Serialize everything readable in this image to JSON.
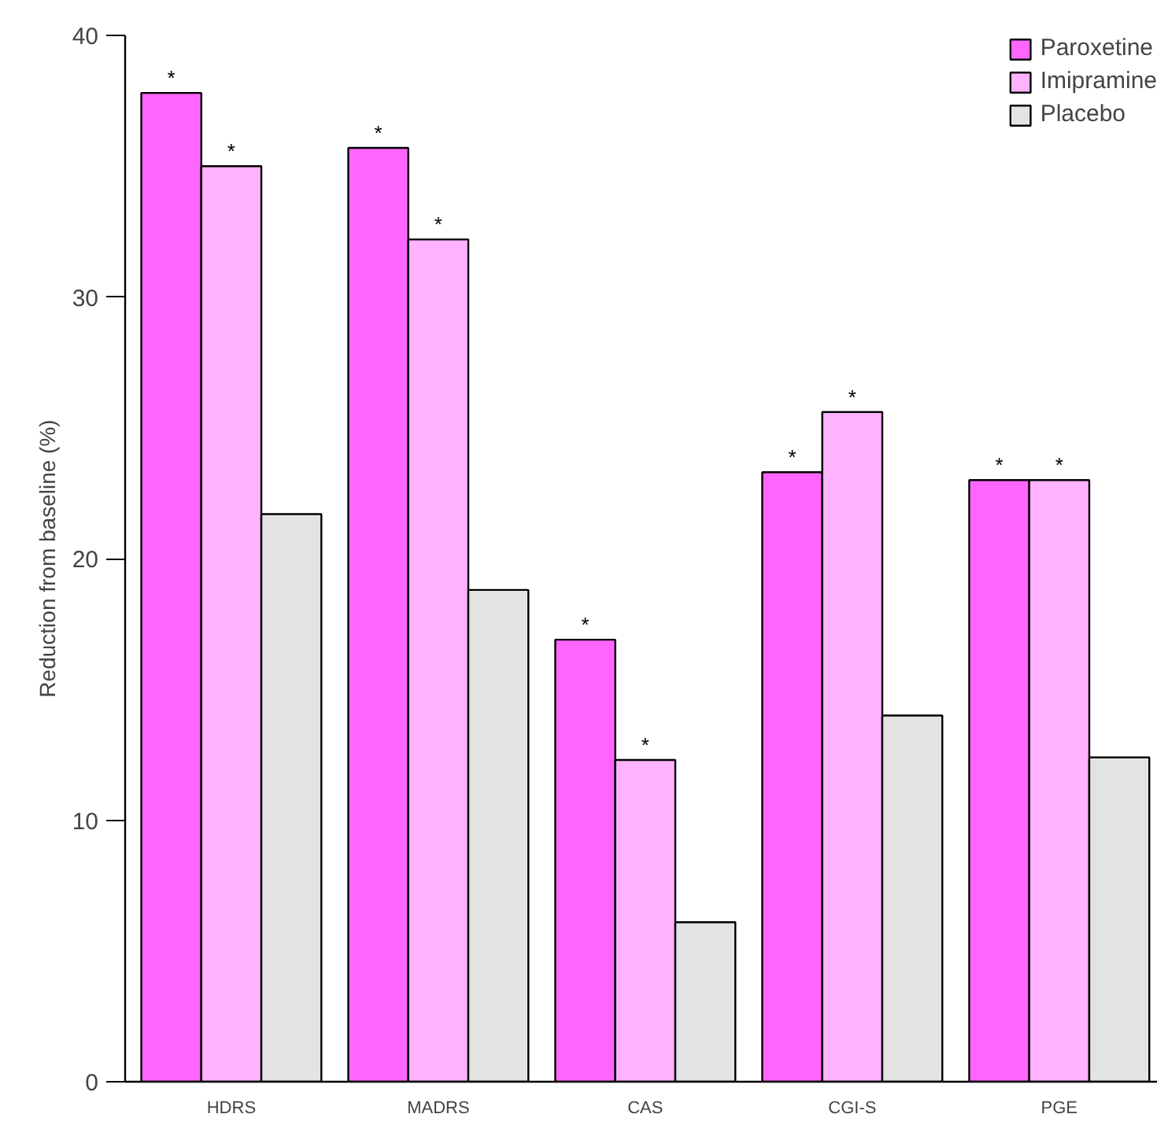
{
  "chart_data": {
    "type": "bar",
    "ylabel": "Reduction from baseline (%)",
    "categories": [
      "HDRS",
      "MADRS",
      "CAS",
      "CGI-S",
      "PGE"
    ],
    "series": [
      {
        "name": "Paroxetine",
        "color": "#ff66ff",
        "values": [
          37.8,
          35.7,
          16.9,
          23.3,
          23.0
        ],
        "value_labels": [
          "*",
          "*",
          "*",
          "*",
          "*"
        ]
      },
      {
        "name": "Imipramine",
        "color": "#ffb3ff",
        "values": [
          35.0,
          32.2,
          12.3,
          25.6,
          23.0
        ],
        "value_labels": [
          "*",
          "*",
          "*",
          "*",
          "*"
        ]
      },
      {
        "name": "Placebo",
        "color": "#e3e3e3",
        "values": [
          21.7,
          18.8,
          6.1,
          14.0,
          12.4
        ]
      }
    ],
    "ylim": [
      0,
      40
    ],
    "yticks": [
      0,
      10,
      20,
      30,
      40
    ],
    "grid": false,
    "legend": "top right"
  }
}
